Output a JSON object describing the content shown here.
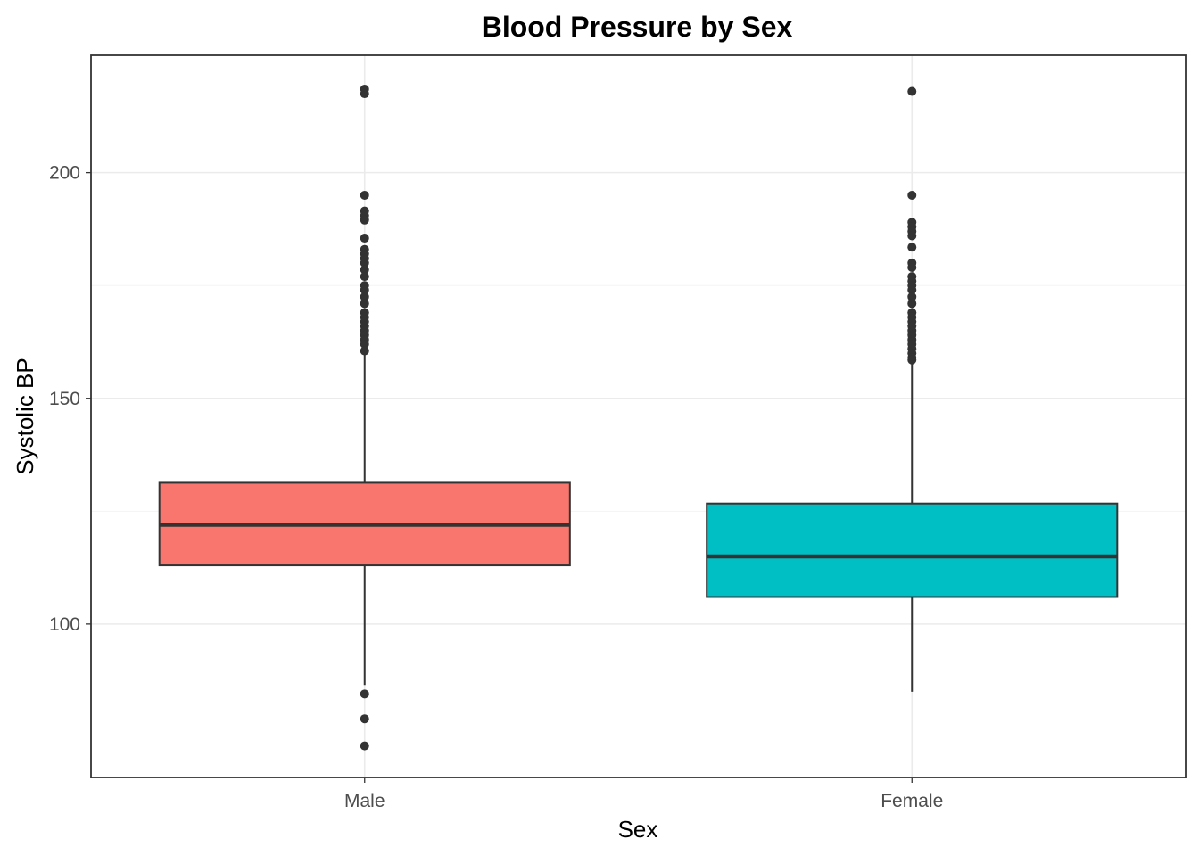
{
  "chart_data": {
    "type": "boxplot",
    "title": "Blood Pressure by Sex",
    "xlabel": "Sex",
    "ylabel": "Systolic BP",
    "ylim": [
      66,
      226
    ],
    "y_ticks": [
      100,
      150,
      200
    ],
    "y_minor": [
      75,
      125,
      175
    ],
    "grid": true,
    "legend": "none",
    "groups": [
      {
        "name": "Male",
        "color": "#F8766D",
        "q1": 113,
        "median": 122,
        "q3": 131.3,
        "whisker_low": 86.5,
        "whisker_high": 160,
        "outliers": [
          218.5,
          217.5,
          195,
          191.5,
          190.5,
          189.5,
          185.5,
          183,
          182,
          181,
          180,
          178.5,
          177,
          175,
          174,
          172.5,
          171,
          169,
          168,
          167,
          166,
          165,
          164,
          163,
          162,
          160.5,
          84.5,
          79,
          73
        ]
      },
      {
        "name": "Female",
        "color": "#00BFC4",
        "q1": 106,
        "median": 115,
        "q3": 126.7,
        "whisker_low": 85,
        "whisker_high": 158,
        "outliers": [
          218,
          195,
          189,
          188,
          187,
          186,
          183.5,
          180,
          179,
          177,
          176,
          175,
          174,
          172.5,
          171,
          169,
          168,
          167,
          166,
          165,
          164,
          163,
          162,
          161,
          160,
          159,
          158.5
        ]
      }
    ]
  }
}
